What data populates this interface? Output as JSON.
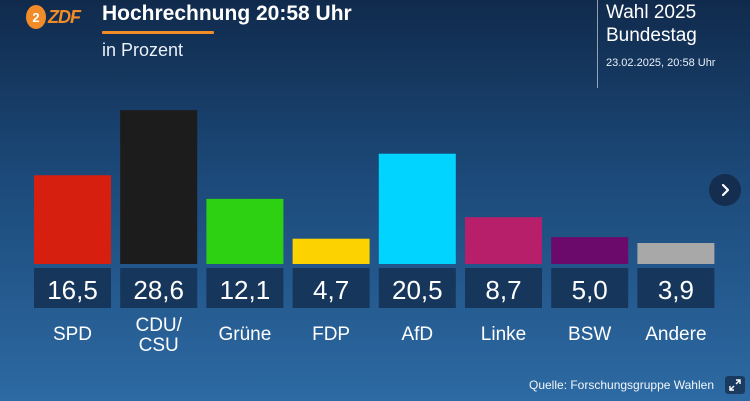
{
  "header": {
    "logo": "ZDF",
    "title": "Hochrechnung 20:58 Uhr",
    "subtitle": "in Prozent",
    "election_line1": "Wahl 2025",
    "election_line2": "Bundestag",
    "election_date": "23.02.2025, 20:58 Uhr"
  },
  "footer": {
    "source": "Quelle: Forschungsgruppe Wahlen"
  },
  "icons": {
    "next": "chevron-right-icon",
    "expand": "expand-icon"
  },
  "chart_data": {
    "type": "bar",
    "categories": [
      "SPD",
      "CDU/ CSU",
      "Grüne",
      "FDP",
      "AfD",
      "Linke",
      "BSW",
      "Andere"
    ],
    "category_lines": [
      [
        "SPD"
      ],
      [
        "CDU/",
        "CSU"
      ],
      [
        "Grüne"
      ],
      [
        "FDP"
      ],
      [
        "AfD"
      ],
      [
        "Linke"
      ],
      [
        "BSW"
      ],
      [
        "Andere"
      ]
    ],
    "values": [
      16.5,
      28.6,
      12.1,
      4.7,
      20.5,
      8.7,
      5.0,
      3.9
    ],
    "value_labels": [
      "16,5",
      "28,6",
      "12,1",
      "4,7",
      "20,5",
      "8,7",
      "5,0",
      "3,9"
    ],
    "colors": [
      "#d71f10",
      "#1c1c1c",
      "#2ed112",
      "#fcd200",
      "#00d4ff",
      "#b81f6b",
      "#6b0a6b",
      "#a8a8a8"
    ],
    "value_box_color": "#16365c"
  }
}
